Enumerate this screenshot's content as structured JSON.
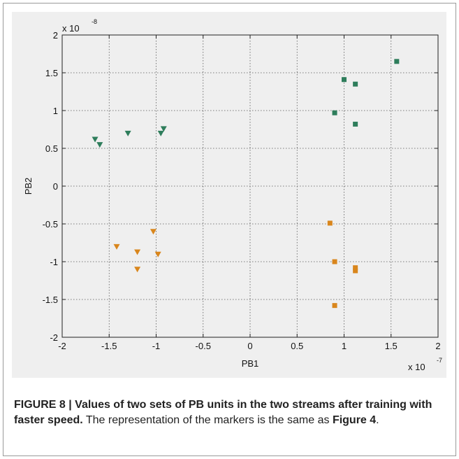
{
  "chart_data": {
    "type": "scatter",
    "xlabel": "PB1",
    "ylabel": "PB2",
    "x_exponent_label": "x 10",
    "x_exponent": "-7",
    "y_exponent_label": "x 10",
    "y_exponent": "-8",
    "xlim": [
      -2,
      2
    ],
    "ylim": [
      -2,
      2
    ],
    "x_scale": "1e-7",
    "y_scale": "1e-8",
    "x_ticks": [
      "-2",
      "-1.5",
      "-1",
      "-0.5",
      "0",
      "0.5",
      "1",
      "1.5",
      "2"
    ],
    "y_ticks": [
      "-2",
      "-1.5",
      "-1",
      "-0.5",
      "0",
      "0.5",
      "1",
      "1.5",
      "2"
    ],
    "grid": true,
    "series": [
      {
        "marker": "triangle-down",
        "color": "#2e7d5b",
        "points": [
          [
            -1.65,
            0.62
          ],
          [
            -1.6,
            0.55
          ],
          [
            -1.3,
            0.7
          ],
          [
            -0.95,
            0.7
          ],
          [
            -0.92,
            0.76
          ]
        ]
      },
      {
        "marker": "square",
        "color": "#2e7d5b",
        "points": [
          [
            0.9,
            0.97
          ],
          [
            1.0,
            1.41
          ],
          [
            1.12,
            1.35
          ],
          [
            1.12,
            0.82
          ],
          [
            1.56,
            1.65
          ]
        ]
      },
      {
        "marker": "triangle-down",
        "color": "#d9861c",
        "points": [
          [
            -1.42,
            -0.8
          ],
          [
            -1.03,
            -0.6
          ],
          [
            -1.2,
            -0.87
          ],
          [
            -0.98,
            -0.9
          ],
          [
            -1.2,
            -1.1
          ]
        ]
      },
      {
        "marker": "square",
        "color": "#d9861c",
        "points": [
          [
            0.85,
            -0.49
          ],
          [
            0.9,
            -1.0
          ],
          [
            1.12,
            -1.08
          ],
          [
            1.12,
            -1.12
          ],
          [
            0.9,
            -1.58
          ]
        ]
      }
    ]
  },
  "caption": {
    "label": "FIGURE 8 | Values of two sets of PB units in the two streams after training with faster speed.",
    "text": " The representation of the markers is the same as ",
    "ref": "Figure 4",
    "end": "."
  }
}
